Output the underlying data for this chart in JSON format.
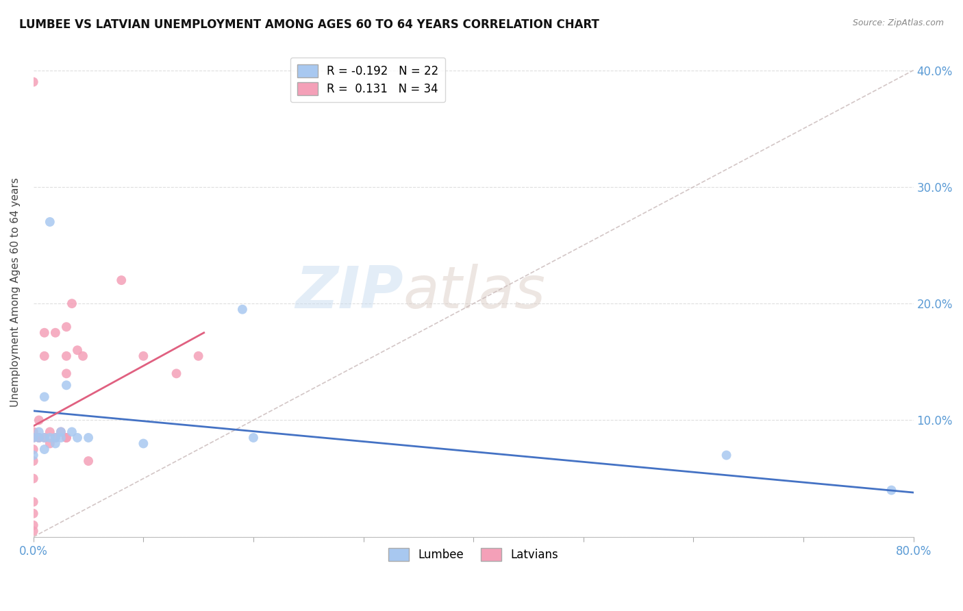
{
  "title": "LUMBEE VS LATVIAN UNEMPLOYMENT AMONG AGES 60 TO 64 YEARS CORRELATION CHART",
  "source": "Source: ZipAtlas.com",
  "ylabel": "Unemployment Among Ages 60 to 64 years",
  "xlim": [
    0.0,
    0.8
  ],
  "ylim": [
    0.0,
    0.42
  ],
  "x_ticks": [
    0.0,
    0.1,
    0.2,
    0.3,
    0.4,
    0.5,
    0.6,
    0.7,
    0.8
  ],
  "y_ticks": [
    0.0,
    0.1,
    0.2,
    0.3,
    0.4
  ],
  "y_tick_labels_right": [
    "",
    "10.0%",
    "20.0%",
    "30.0%",
    "40.0%"
  ],
  "lumbee_color": "#A8C8F0",
  "latvian_color": "#F4A0B8",
  "lumbee_line_color": "#4472C4",
  "latvian_line_color": "#E06080",
  "diagonal_line_color": "#C8B8B8",
  "lumbee_R": "-0.192",
  "lumbee_N": "22",
  "latvian_R": "0.131",
  "latvian_N": "34",
  "lumbee_points_x": [
    0.0,
    0.0,
    0.005,
    0.005,
    0.01,
    0.01,
    0.01,
    0.015,
    0.015,
    0.02,
    0.02,
    0.025,
    0.025,
    0.03,
    0.035,
    0.04,
    0.05,
    0.1,
    0.19,
    0.2,
    0.63,
    0.78
  ],
  "lumbee_points_y": [
    0.07,
    0.085,
    0.085,
    0.09,
    0.075,
    0.085,
    0.12,
    0.085,
    0.27,
    0.08,
    0.085,
    0.085,
    0.09,
    0.13,
    0.09,
    0.085,
    0.085,
    0.08,
    0.195,
    0.085,
    0.07,
    0.04
  ],
  "latvian_points_x": [
    0.0,
    0.0,
    0.0,
    0.0,
    0.0,
    0.0,
    0.0,
    0.0,
    0.0,
    0.0,
    0.005,
    0.005,
    0.005,
    0.01,
    0.01,
    0.01,
    0.015,
    0.015,
    0.02,
    0.02,
    0.025,
    0.03,
    0.03,
    0.03,
    0.03,
    0.03,
    0.035,
    0.04,
    0.045,
    0.05,
    0.08,
    0.1,
    0.13,
    0.15
  ],
  "latvian_points_y": [
    0.005,
    0.01,
    0.02,
    0.03,
    0.05,
    0.065,
    0.075,
    0.085,
    0.09,
    0.39,
    0.085,
    0.085,
    0.1,
    0.085,
    0.155,
    0.175,
    0.08,
    0.09,
    0.085,
    0.175,
    0.09,
    0.085,
    0.085,
    0.14,
    0.155,
    0.18,
    0.2,
    0.16,
    0.155,
    0.065,
    0.22,
    0.155,
    0.14,
    0.155
  ],
  "lumbee_line_x": [
    0.0,
    0.8
  ],
  "lumbee_line_y": [
    0.108,
    0.038
  ],
  "latvian_line_x": [
    0.0,
    0.155
  ],
  "latvian_line_y": [
    0.095,
    0.175
  ],
  "watermark_zip": "ZIP",
  "watermark_atlas": "atlas",
  "background_color": "#FFFFFF",
  "grid_color": "#DEDEDE"
}
